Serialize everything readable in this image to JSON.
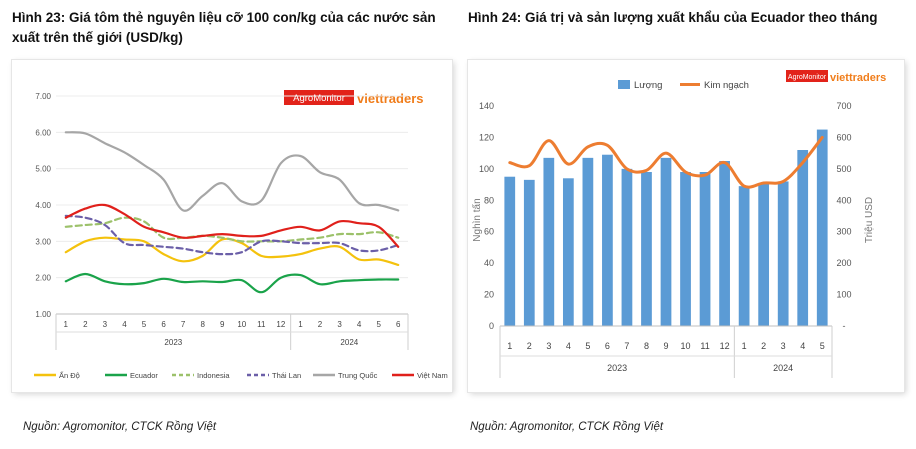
{
  "left": {
    "title": "Hình 23: Giá tôm thẻ nguyên liệu cỡ 100 con/kg của các nước sản xuất trên thế giới (USD/kg)",
    "source": "Nguồn: Agromonitor, CTCK Rồng Việt",
    "logo_agro": "AgroMonitor",
    "logo_vt": "viettraders"
  },
  "right": {
    "title": "Hình 24: Giá trị và sản lượng xuất khẩu của Ecuador theo tháng",
    "source": "Nguồn: Agromonitor, CTCK Rồng Việt",
    "logo_agro": "AgroMonitor",
    "logo_vt": "viettraders"
  },
  "chart_data": [
    {
      "type": "line",
      "title": "",
      "xlabel": "",
      "ylabel": "",
      "x": [
        "1",
        "2",
        "3",
        "4",
        "5",
        "6",
        "7",
        "8",
        "9",
        "10",
        "11",
        "12",
        "1",
        "2",
        "3",
        "4",
        "5",
        "6"
      ],
      "year_groups": [
        {
          "label": "2023",
          "from": 0,
          "to": 11
        },
        {
          "label": "2024",
          "from": 12,
          "to": 17
        }
      ],
      "y_ticks": [
        "1.00",
        "2.00",
        "3.00",
        "4.00",
        "5.00",
        "6.00",
        "7.00"
      ],
      "ylim": [
        1,
        7
      ],
      "grid": true,
      "legend_position": "bottom",
      "series": [
        {
          "name": "Ấn Độ",
          "color": "#f4c20d",
          "dash": "solid",
          "values": [
            2.7,
            3.0,
            3.1,
            3.05,
            3.0,
            2.65,
            2.45,
            2.6,
            3.05,
            2.95,
            2.6,
            2.58,
            2.65,
            2.8,
            2.85,
            2.5,
            2.5,
            2.35
          ]
        },
        {
          "name": "Ecuador",
          "color": "#1aa34a",
          "dash": "solid",
          "values": [
            1.9,
            2.1,
            1.9,
            1.82,
            1.85,
            1.97,
            1.88,
            1.9,
            1.88,
            1.93,
            1.6,
            2.0,
            2.07,
            1.82,
            1.9,
            1.93,
            1.95,
            1.95
          ]
        },
        {
          "name": "Indonesia",
          "color": "#9cc16a",
          "dash": "dashed",
          "values": [
            3.4,
            3.45,
            3.5,
            3.65,
            3.55,
            3.1,
            3.1,
            3.15,
            3.1,
            3.0,
            3.0,
            3.0,
            3.05,
            3.1,
            3.2,
            3.2,
            3.25,
            3.1
          ]
        },
        {
          "name": "Thái Lan",
          "color": "#6b5fa8",
          "dash": "dashed",
          "values": [
            3.7,
            3.65,
            3.45,
            2.95,
            2.9,
            2.85,
            2.8,
            2.7,
            2.65,
            2.7,
            3.0,
            3.0,
            2.95,
            2.95,
            2.95,
            2.75,
            2.75,
            2.9
          ]
        },
        {
          "name": "Trung Quốc",
          "color": "#a6a6a6",
          "dash": "solid",
          "values": [
            6.0,
            5.97,
            5.7,
            5.45,
            5.1,
            4.7,
            3.85,
            4.25,
            4.6,
            4.1,
            4.12,
            5.15,
            5.35,
            4.9,
            4.7,
            4.05,
            4.0,
            3.85
          ]
        },
        {
          "name": "Việt Nam",
          "color": "#e0201b",
          "dash": "solid",
          "values": [
            3.65,
            3.9,
            4.0,
            3.75,
            3.4,
            3.25,
            3.1,
            3.15,
            3.2,
            3.15,
            3.15,
            3.3,
            3.4,
            3.3,
            3.55,
            3.5,
            3.4,
            2.85
          ]
        }
      ]
    },
    {
      "type": "bar",
      "title": "",
      "xlabel": "",
      "ylabel": "Nghìn tấn",
      "y2label": "Triệu USD",
      "categories": [
        "1",
        "2",
        "3",
        "4",
        "5",
        "6",
        "7",
        "8",
        "9",
        "10",
        "11",
        "12",
        "1",
        "2",
        "3",
        "4",
        "5"
      ],
      "year_groups": [
        {
          "label": "2023",
          "from": 0,
          "to": 11
        },
        {
          "label": "2024",
          "from": 12,
          "to": 16
        }
      ],
      "ylim": [
        0,
        140
      ],
      "y_ticks": [
        "0",
        "20",
        "40",
        "60",
        "80",
        "100",
        "120",
        "140"
      ],
      "y2lim": [
        0,
        700
      ],
      "y2_ticks": [
        "-",
        "100",
        "200",
        "300",
        "400",
        "500",
        "600",
        "700"
      ],
      "legend_position": "top",
      "series": [
        {
          "name": "Lượng",
          "type": "bar",
          "axis": "left",
          "color": "#5b9bd5",
          "values": [
            95,
            93,
            107,
            94,
            107,
            109,
            100,
            98,
            107,
            98,
            98,
            105,
            89,
            91,
            92,
            112,
            125
          ]
        },
        {
          "name": "Kim ngạch",
          "type": "line",
          "axis": "right",
          "color": "#ed7d31",
          "values": [
            520,
            510,
            590,
            515,
            570,
            575,
            500,
            495,
            550,
            490,
            480,
            520,
            445,
            455,
            460,
            520,
            600
          ]
        }
      ]
    }
  ]
}
